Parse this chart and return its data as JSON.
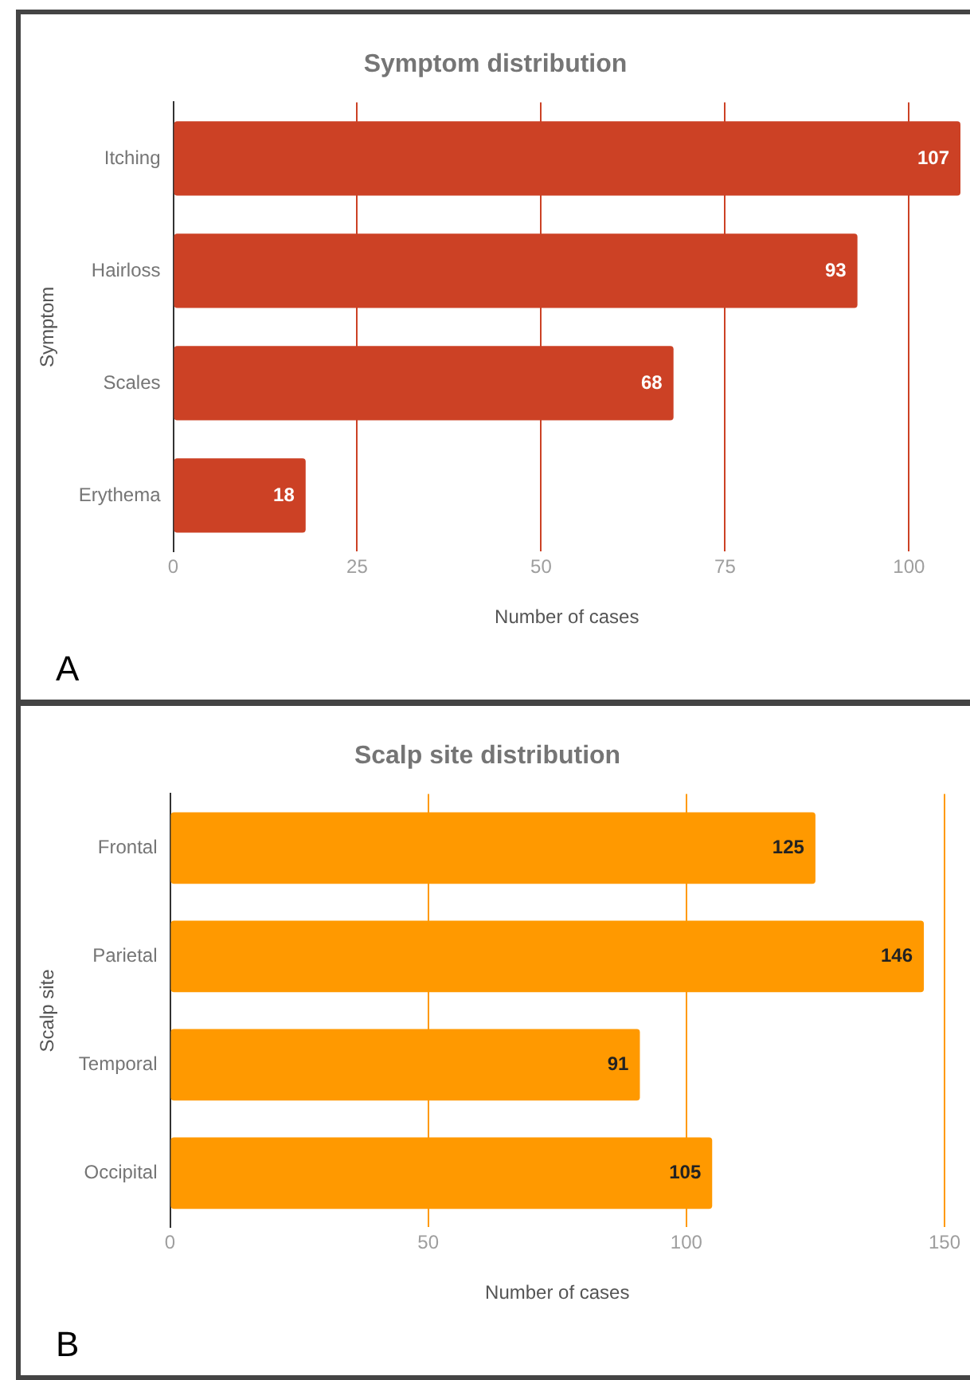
{
  "chart_data": [
    {
      "type": "bar",
      "orientation": "horizontal",
      "title": "Symptom distribution",
      "xlabel": "Number of cases",
      "ylabel": "Symptom",
      "categories": [
        "Itching",
        "Hairloss",
        "Scales",
        "Erythema"
      ],
      "values": [
        107,
        93,
        68,
        18
      ],
      "color": "#cc4125",
      "xlim": [
        0,
        107
      ],
      "xticks": [
        0,
        25,
        50,
        75,
        100
      ],
      "grid": "x",
      "data_labels": true,
      "annotations": [
        "A"
      ]
    },
    {
      "type": "bar",
      "orientation": "horizontal",
      "title": "Scalp site distribution",
      "xlabel": "Number of cases",
      "ylabel": "Scalp site",
      "categories": [
        "Frontal",
        "Parietal",
        "Temporal",
        "Occipital"
      ],
      "values": [
        125,
        146,
        91,
        105
      ],
      "color": "#ff9900",
      "xlim": [
        0,
        150
      ],
      "xticks": [
        0,
        50,
        100,
        150
      ],
      "grid": "x",
      "data_labels": true,
      "annotations": [
        "B"
      ]
    }
  ]
}
